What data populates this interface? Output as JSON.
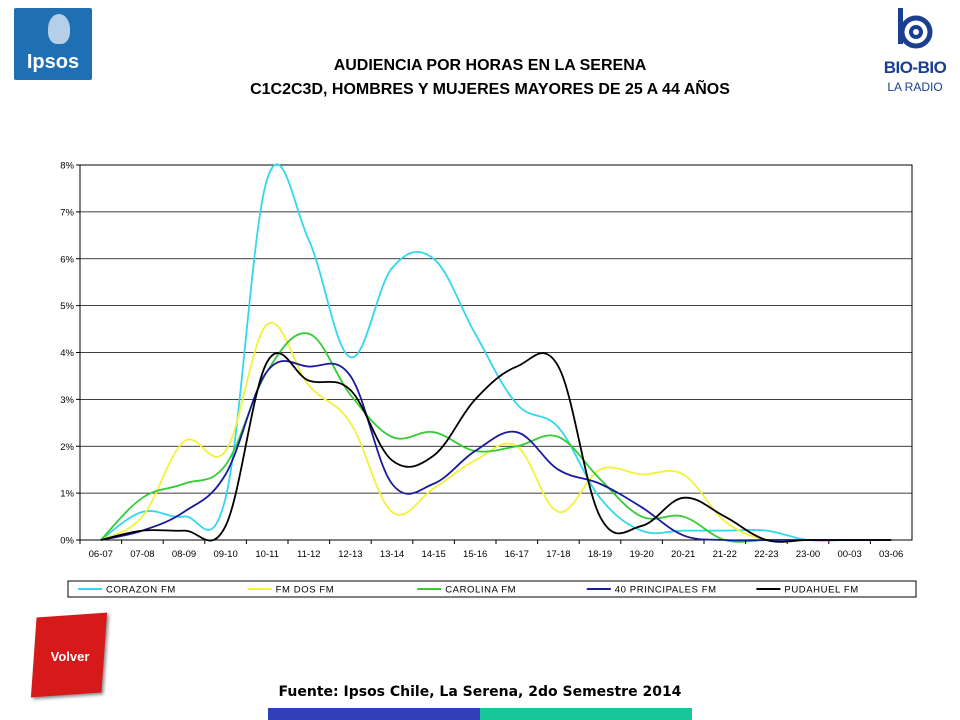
{
  "header": {
    "title_line1": "AUDIENCIA POR HORAS EN LA SERENA",
    "title_line2": "C1C2C3D, HOMBRES Y MUJERES MAYORES DE 25 A 44 AÑOS"
  },
  "logos": {
    "ipsos": "Ipsos",
    "biobio_name": "BIO-BIO",
    "biobio_sub": "LA RADIO"
  },
  "nav": {
    "back_label": "Volver"
  },
  "footer": {
    "source": "Fuente: Ipsos Chile, La Serena, 2do Semestre 2014"
  },
  "colors": {
    "footer_bar_left": "#2f3fb8",
    "footer_bar_right": "#17c79a",
    "back_button": "#d61a1a"
  },
  "chart_data": {
    "type": "line",
    "title": "",
    "xlabel": "",
    "ylabel": "",
    "ylim": [
      0,
      8
    ],
    "y_ticks": [
      "0%",
      "1%",
      "2%",
      "3%",
      "4%",
      "5%",
      "6%",
      "7%",
      "8%"
    ],
    "grid": true,
    "legend_position": "bottom",
    "categories": [
      "06-07",
      "07-08",
      "08-09",
      "09-10",
      "10-11",
      "11-12",
      "12-13",
      "13-14",
      "14-15",
      "15-16",
      "16-17",
      "17-18",
      "18-19",
      "19-20",
      "20-21",
      "21-22",
      "22-23",
      "23-00",
      "00-03",
      "03-06"
    ],
    "series": [
      {
        "name": "CORAZON FM",
        "color": "#33d6ee",
        "values": [
          0.0,
          0.6,
          0.5,
          0.9,
          7.7,
          6.4,
          3.9,
          5.8,
          6.0,
          4.4,
          2.9,
          2.4,
          0.9,
          0.2,
          0.2,
          0.2,
          0.2,
          0.0,
          0.0,
          0.0
        ]
      },
      {
        "name": "FM DOS FM",
        "color": "#f2f23a",
        "values": [
          0.0,
          0.5,
          2.1,
          1.9,
          4.6,
          3.3,
          2.5,
          0.6,
          1.1,
          1.7,
          2.0,
          0.6,
          1.5,
          1.4,
          1.4,
          0.4,
          0.0,
          0.0,
          0.0,
          0.0
        ]
      },
      {
        "name": "CAROLINA FM",
        "color": "#33cc33",
        "values": [
          0.0,
          0.9,
          1.2,
          1.6,
          3.6,
          4.4,
          3.1,
          2.2,
          2.3,
          1.9,
          2.0,
          2.2,
          1.3,
          0.5,
          0.5,
          0.0,
          0.0,
          0.0,
          0.0,
          0.0
        ]
      },
      {
        "name": "40 PRINCIPALES FM",
        "color": "#1a1a9e",
        "values": [
          0.0,
          0.2,
          0.6,
          1.4,
          3.6,
          3.7,
          3.5,
          1.2,
          1.2,
          1.9,
          2.3,
          1.5,
          1.2,
          0.7,
          0.1,
          0.0,
          0.0,
          0.0,
          0.0,
          0.0
        ]
      },
      {
        "name": "PUDAHUEL FM",
        "color": "#000000",
        "values": [
          0.0,
          0.2,
          0.2,
          0.3,
          3.8,
          3.4,
          3.2,
          1.7,
          1.8,
          3.0,
          3.7,
          3.7,
          0.5,
          0.3,
          0.9,
          0.5,
          0.0,
          0.0,
          0.0,
          0.0
        ]
      }
    ]
  }
}
